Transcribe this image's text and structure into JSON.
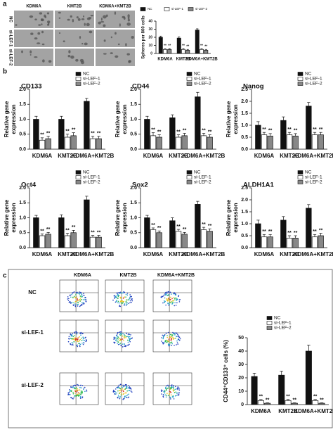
{
  "panels": {
    "a": "a",
    "b": "b",
    "c": "c"
  },
  "image_columns": [
    "KDM6A",
    "KMT2B",
    "KDM6A+KMT2B"
  ],
  "image_rows": [
    "NC",
    "si-LEF-1",
    "si-LEF-2"
  ],
  "chart_data": [
    {
      "type": "bar",
      "y_label": [
        "Spheres per 800 cells"
      ],
      "categories": [
        "KDM6A",
        "KMT2B",
        "KDM6A+KMT2B"
      ],
      "significance": "**",
      "ylim": [
        0,
        40
      ],
      "yticks": [
        0,
        10,
        20,
        30,
        40
      ],
      "series": [
        {
          "name": "NC",
          "color": "#111111",
          "values": [
            20,
            19,
            29
          ],
          "errors": [
            1.5,
            1.5,
            1.5
          ]
        },
        {
          "name": "si-LEF-1",
          "color": "#ffffff",
          "values": [
            5,
            5,
            5
          ],
          "errors": [
            1,
            1,
            1
          ]
        },
        {
          "name": "si-LEF-2",
          "color": "#888888",
          "values": [
            5,
            4,
            4
          ],
          "errors": [
            1,
            1,
            1
          ]
        }
      ]
    },
    {
      "type": "bar",
      "title": "CD133",
      "y_label": [
        "Relative gene",
        "expression"
      ],
      "categories": [
        "KDM6A",
        "KMT2B",
        "KDM6A+KMT2B"
      ],
      "significance": "**",
      "ylim": [
        0,
        2
      ],
      "yticks": [
        {
          "value": 0,
          "label": "0.0"
        },
        0.5,
        {
          "value": 1,
          "label": "1.0"
        },
        1.5,
        {
          "value": 2,
          "label": "2.0"
        }
      ],
      "series": [
        {
          "name": "NC",
          "color": "#111111",
          "values": [
            1.0,
            1.0,
            1.6
          ],
          "errors": [
            0.1,
            0.1,
            0.1
          ]
        },
        {
          "name": "si-LEF-1",
          "color": "#ffffff",
          "values": [
            0.3,
            0.4,
            0.35
          ],
          "errors": [
            0.08,
            0.1,
            0.08
          ]
        },
        {
          "name": "si-LEF-2",
          "color": "#888888",
          "values": [
            0.35,
            0.45,
            0.35
          ],
          "errors": [
            0.08,
            0.1,
            0.08
          ]
        }
      ]
    },
    {
      "type": "bar",
      "title": "CD44",
      "y_label": [
        "Relative gene",
        "expression"
      ],
      "categories": [
        "KDM6A",
        "KMT2B",
        "KDM6A+KMT2B"
      ],
      "significance": "**",
      "ylim": [
        0,
        2
      ],
      "yticks": [
        {
          "value": 0,
          "label": "0.0"
        },
        0.5,
        {
          "value": 1,
          "label": "1.0"
        },
        1.5,
        {
          "value": 2,
          "label": "2.0"
        }
      ],
      "series": [
        {
          "name": "NC",
          "color": "#111111",
          "values": [
            1.0,
            1.05,
            1.75
          ],
          "errors": [
            0.1,
            0.1,
            0.15
          ]
        },
        {
          "name": "si-LEF-1",
          "color": "#ffffff",
          "values": [
            0.45,
            0.4,
            0.45
          ],
          "errors": [
            0.1,
            0.08,
            0.08
          ]
        },
        {
          "name": "si-LEF-2",
          "color": "#888888",
          "values": [
            0.4,
            0.45,
            0.4
          ],
          "errors": [
            0.08,
            0.08,
            0.08
          ]
        }
      ]
    },
    {
      "type": "bar",
      "title": "Nanog",
      "y_label": [
        "Relative gene",
        "expression"
      ],
      "categories": [
        "KDM6A",
        "KMT2B",
        "KDM6A+KMT2B"
      ],
      "significance": "**",
      "ylim": [
        0,
        2.5
      ],
      "yticks": [
        {
          "value": 0,
          "label": "0.0"
        },
        0.5,
        {
          "value": 1,
          "label": "1.0"
        },
        1.5,
        {
          "value": 2,
          "label": "2.0"
        },
        2.5
      ],
      "series": [
        {
          "name": "NC",
          "color": "#111111",
          "values": [
            1.0,
            1.2,
            1.8
          ],
          "errors": [
            0.15,
            0.15,
            0.15
          ]
        },
        {
          "name": "si-LEF-1",
          "color": "#ffffff",
          "values": [
            0.6,
            0.6,
            0.6
          ],
          "errors": [
            0.1,
            0.1,
            0.1
          ]
        },
        {
          "name": "si-LEF-2",
          "color": "#888888",
          "values": [
            0.55,
            0.55,
            0.6
          ],
          "errors": [
            0.1,
            0.1,
            0.1
          ]
        }
      ]
    },
    {
      "type": "bar",
      "title": "Oct4",
      "y_label": [
        "Relative gene",
        "expression"
      ],
      "categories": [
        "KDM6A",
        "KMT2B",
        "KDM6A+KMT2B"
      ],
      "significance": "**",
      "ylim": [
        0,
        2
      ],
      "yticks": [
        {
          "value": 0,
          "label": "0.0"
        },
        0.5,
        {
          "value": 1,
          "label": "1.0"
        },
        1.5,
        {
          "value": 2,
          "label": "2.0"
        }
      ],
      "series": [
        {
          "name": "NC",
          "color": "#111111",
          "values": [
            1.0,
            1.0,
            1.6
          ],
          "errors": [
            0.08,
            0.1,
            0.12
          ]
        },
        {
          "name": "si-LEF-1",
          "color": "#ffffff",
          "values": [
            0.4,
            0.4,
            0.35
          ],
          "errors": [
            0.06,
            0.08,
            0.06
          ]
        },
        {
          "name": "si-LEF-2",
          "color": "#888888",
          "values": [
            0.45,
            0.5,
            0.35
          ],
          "errors": [
            0.06,
            0.08,
            0.06
          ]
        }
      ]
    },
    {
      "type": "bar",
      "title": "Sox2",
      "y_label": [
        "Relative gene",
        "expression"
      ],
      "categories": [
        "KDM6A",
        "KMT2B",
        "KDM6A+KMT2B"
      ],
      "significance": "**",
      "ylim": [
        0,
        2
      ],
      "yticks": [
        {
          "value": 0,
          "label": "0.0"
        },
        0.5,
        {
          "value": 1,
          "label": "1.0"
        },
        1.5,
        {
          "value": 2,
          "label": "2.0"
        }
      ],
      "series": [
        {
          "name": "NC",
          "color": "#111111",
          "values": [
            1.0,
            0.9,
            1.45
          ],
          "errors": [
            0.08,
            0.1,
            0.1
          ]
        },
        {
          "name": "si-LEF-1",
          "color": "#ffffff",
          "values": [
            0.6,
            0.55,
            0.6
          ],
          "errors": [
            0.06,
            0.06,
            0.08
          ]
        },
        {
          "name": "si-LEF-2",
          "color": "#888888",
          "values": [
            0.5,
            0.45,
            0.55
          ],
          "errors": [
            0.06,
            0.06,
            0.08
          ]
        }
      ]
    },
    {
      "type": "bar",
      "title": "ALDH1A1",
      "y_label": [
        "Relative gene",
        "expression"
      ],
      "categories": [
        "KDM6A",
        "KMT2B",
        "KDM6A+KMT2B"
      ],
      "significance": "**",
      "ylim": [
        0,
        2.5
      ],
      "yticks": [
        {
          "value": 0,
          "label": "0.0"
        },
        0.5,
        {
          "value": 1,
          "label": "1.0"
        },
        1.5,
        {
          "value": 2,
          "label": "2.0"
        },
        2.5
      ],
      "series": [
        {
          "name": "NC",
          "color": "#111111",
          "values": [
            1.0,
            1.15,
            1.65
          ],
          "errors": [
            0.15,
            0.15,
            0.15
          ]
        },
        {
          "name": "si-LEF-1",
          "color": "#ffffff",
          "values": [
            0.45,
            0.4,
            0.45
          ],
          "errors": [
            0.1,
            0.1,
            0.1
          ]
        },
        {
          "name": "si-LEF-2",
          "color": "#888888",
          "values": [
            0.45,
            0.4,
            0.5
          ],
          "errors": [
            0.1,
            0.1,
            0.1
          ]
        }
      ]
    },
    {
      "type": "bar",
      "y_label": [
        "CD44⁺CD133⁺ cells (%)"
      ],
      "categories": [
        "KDM6A",
        "KMT2B",
        "KDM6A+KMT2B"
      ],
      "significance": "**",
      "ylim": [
        0,
        50
      ],
      "yticks": [
        0,
        10,
        20,
        30,
        40,
        50
      ],
      "series": [
        {
          "name": "NC",
          "color": "#111111",
          "values": [
            21,
            22,
            40
          ],
          "errors": [
            2.5,
            3,
            4.5
          ]
        },
        {
          "name": "si-LEF-1",
          "color": "#ffffff",
          "values": [
            3,
            3,
            3
          ],
          "errors": [
            0.8,
            0.8,
            0.8
          ]
        },
        {
          "name": "si-LEF-2",
          "color": "#888888",
          "values": [
            1,
            1,
            1
          ],
          "errors": [
            0.3,
            0.3,
            0.3
          ]
        }
      ]
    }
  ]
}
